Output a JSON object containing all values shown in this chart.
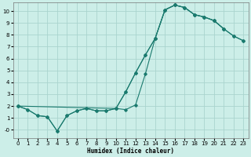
{
  "xlabel": "Humidex (Indice chaleur)",
  "bg_color": "#cceee8",
  "grid_color": "#aad4ce",
  "line_color": "#1a7a6e",
  "xlim": [
    -0.5,
    23.5
  ],
  "ylim": [
    -0.7,
    10.7
  ],
  "xticks": [
    0,
    1,
    2,
    3,
    4,
    5,
    6,
    7,
    8,
    9,
    10,
    11,
    12,
    13,
    14,
    15,
    16,
    17,
    18,
    19,
    20,
    21,
    22,
    23
  ],
  "yticks": [
    0,
    1,
    2,
    3,
    4,
    5,
    6,
    7,
    8,
    9,
    10
  ],
  "ytick_labels": [
    "-0",
    "1",
    "2",
    "3",
    "4",
    "5",
    "6",
    "7",
    "8",
    "9",
    "10"
  ],
  "curve1_x": [
    0,
    1,
    2,
    3,
    4,
    5,
    6,
    7,
    8,
    9,
    10,
    11,
    12,
    13,
    14,
    15,
    16,
    17,
    18,
    19,
    20,
    21
  ],
  "curve1_y": [
    2.0,
    1.7,
    1.2,
    1.1,
    -0.1,
    1.2,
    1.6,
    1.8,
    1.6,
    1.6,
    1.8,
    1.7,
    2.1,
    4.7,
    7.7,
    10.1,
    10.5,
    10.3,
    9.7,
    9.5,
    9.2,
    8.5
  ],
  "curve2_x": [
    0,
    1,
    2,
    3,
    4,
    5,
    6,
    7,
    8,
    9,
    10,
    11,
    12,
    13,
    14,
    15,
    16,
    17,
    18,
    19,
    20,
    21,
    22,
    23
  ],
  "curve2_y": [
    2.0,
    1.7,
    1.2,
    1.1,
    -0.1,
    1.2,
    1.6,
    1.8,
    1.6,
    1.6,
    1.8,
    3.2,
    4.8,
    6.3,
    7.7,
    10.1,
    10.5,
    10.3,
    9.7,
    9.5,
    9.2,
    8.5,
    7.9,
    7.5
  ],
  "curve3_x": [
    0,
    10,
    11,
    12,
    13,
    14,
    15,
    16,
    17,
    18,
    19,
    20,
    21,
    22,
    23
  ],
  "curve3_y": [
    2.0,
    1.8,
    3.2,
    4.8,
    6.3,
    7.7,
    10.1,
    10.5,
    10.3,
    9.7,
    9.5,
    9.2,
    8.5,
    7.9,
    7.5
  ]
}
